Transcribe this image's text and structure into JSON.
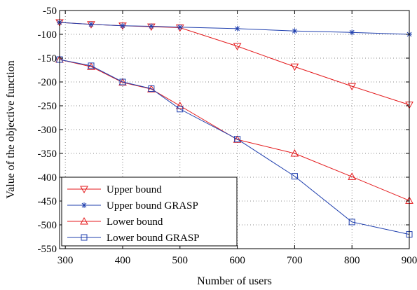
{
  "chart_data": {
    "type": "line",
    "xlabel": "Number of users",
    "ylabel": "Value of the objective function",
    "xlim": [
      290,
      900
    ],
    "ylim": [
      -550,
      -50
    ],
    "xticks": [
      300,
      400,
      500,
      600,
      700,
      800,
      900
    ],
    "yticks": [
      -50,
      -100,
      -150,
      -200,
      -250,
      -300,
      -350,
      -400,
      -450,
      -500,
      -550
    ],
    "xtick_labels": [
      "300",
      "400",
      "500",
      "600",
      "700",
      "800",
      "900"
    ],
    "ytick_labels": [
      "-50",
      "-100",
      "-150",
      "-200",
      "-250",
      "-300",
      "-350",
      "-400",
      "-450",
      "-500",
      "-550"
    ],
    "grid": true,
    "legend_position": "bottom-left",
    "series": [
      {
        "name": "Upper bound",
        "color": "#e41a1c",
        "marker": "triangle-down",
        "x": [
          290,
          345,
          400,
          450,
          500,
          600,
          700,
          800,
          900
        ],
        "y": [
          -75,
          -79,
          -82,
          -84,
          -86,
          -125,
          -168,
          -209,
          -248
        ]
      },
      {
        "name": "Upper bound GRASP",
        "color": "#1f3fae",
        "marker": "star",
        "x": [
          290,
          345,
          400,
          450,
          500,
          600,
          700,
          800,
          900
        ],
        "y": [
          -75,
          -79,
          -82,
          -83,
          -85,
          -88,
          -93,
          -96,
          -100
        ]
      },
      {
        "name": "Lower bound",
        "color": "#e41a1c",
        "marker": "triangle-up",
        "x": [
          290,
          345,
          400,
          450,
          500,
          600,
          700,
          800,
          900
        ],
        "y": [
          -153,
          -168,
          -201,
          -215,
          -250,
          -321,
          -350,
          -399,
          -449
        ]
      },
      {
        "name": "Lower bound GRASP",
        "color": "#1f3fae",
        "marker": "square",
        "x": [
          290,
          345,
          400,
          450,
          500,
          600,
          700,
          800,
          900
        ],
        "y": [
          -153,
          -166,
          -200,
          -214,
          -257,
          -320,
          -398,
          -494,
          -520
        ]
      }
    ]
  }
}
